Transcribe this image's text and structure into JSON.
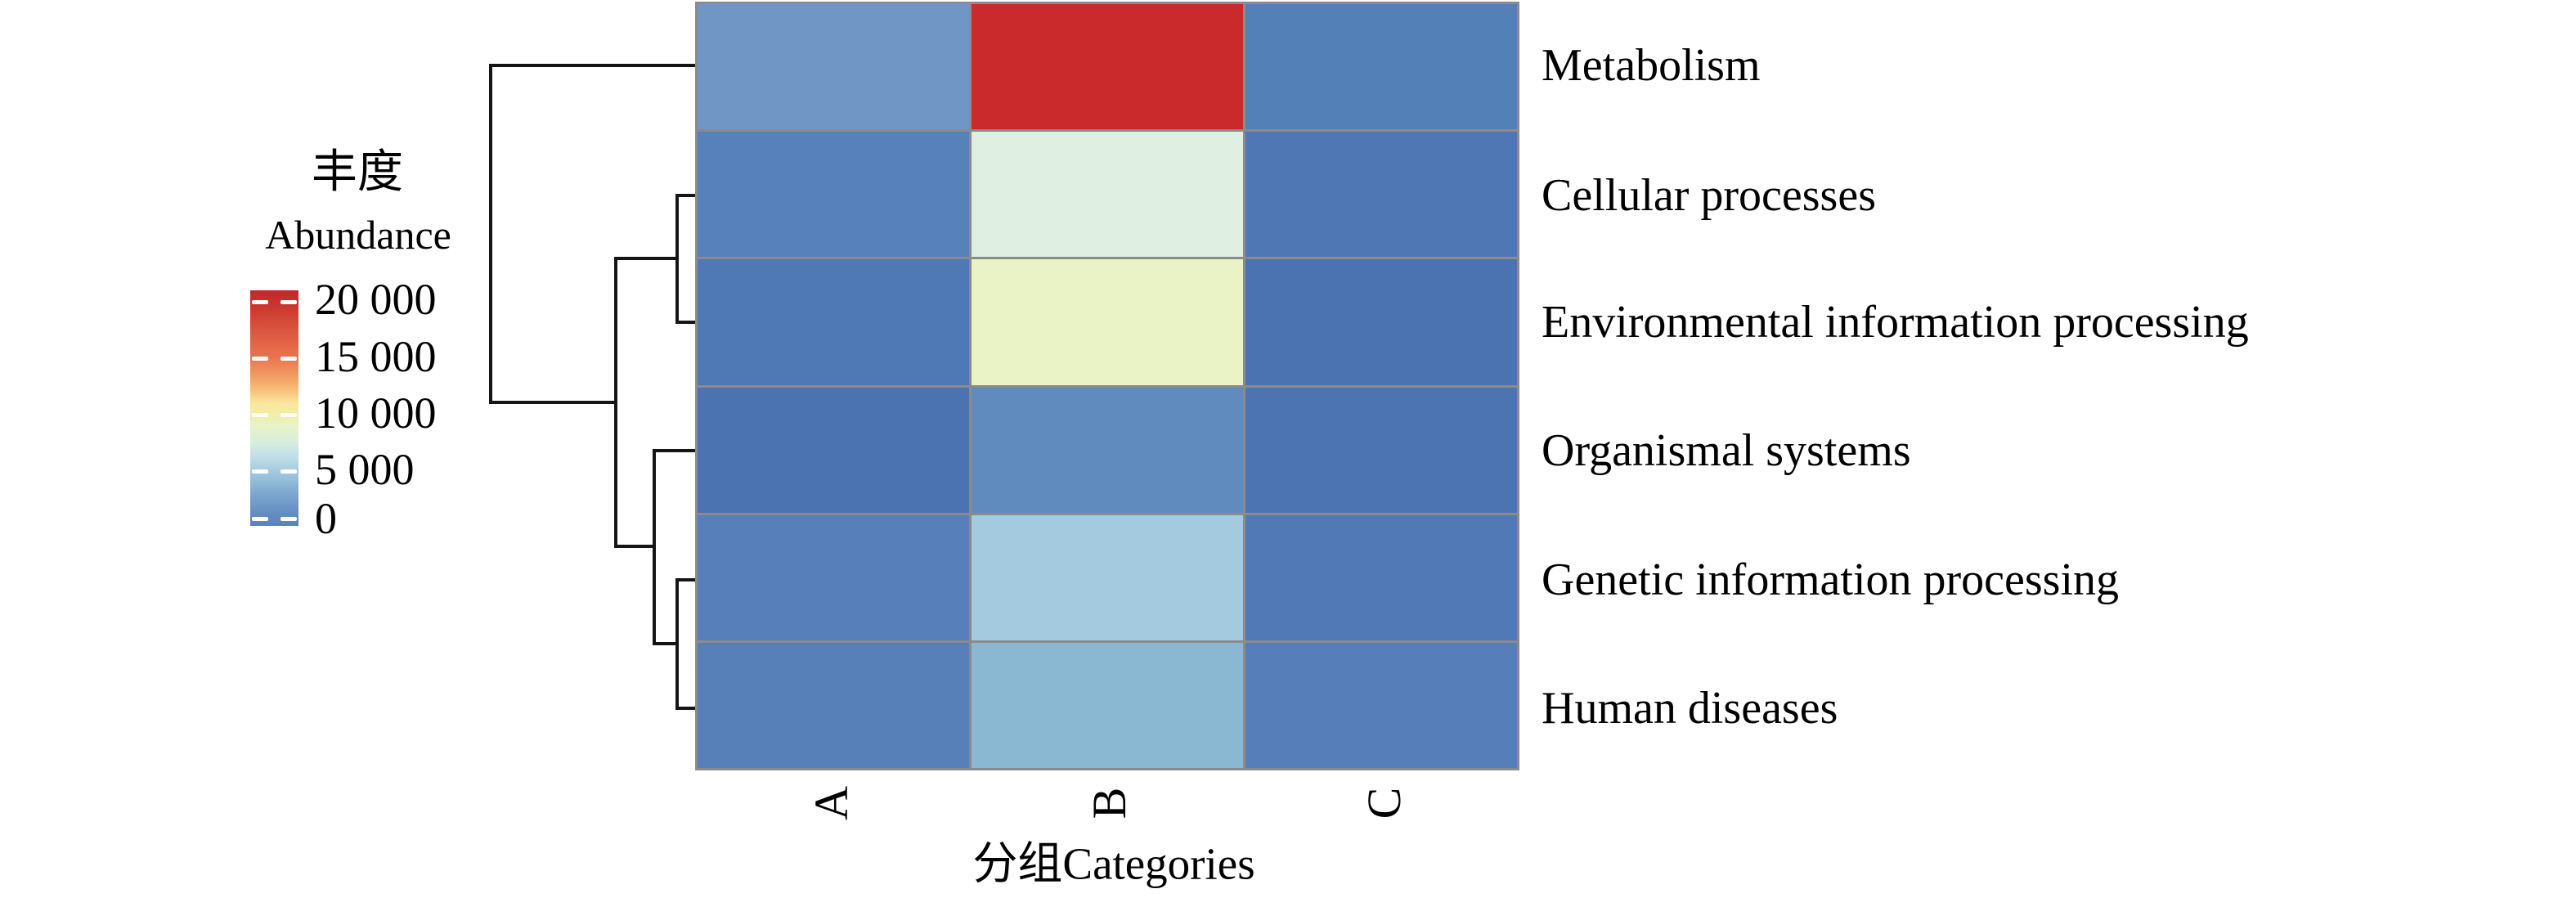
{
  "chart_data": {
    "type": "heatmap",
    "colormap": "RdYlBu",
    "xlabel": "分组Categories",
    "x_categories": [
      "A",
      "B",
      "C"
    ],
    "y_categories": [
      "Metabolism",
      "Cellular processes",
      "Environmental information processing",
      "Organismal systems",
      "Genetic information processing",
      "Human diseases"
    ],
    "legend": {
      "title_zh": "丰度",
      "title_en": "Abundance",
      "tick_labels": [
        "20 000",
        "15 000",
        "10 000",
        "5 000",
        "0"
      ],
      "tick_values": [
        20000,
        15000,
        10000,
        5000,
        0
      ],
      "range": [
        0,
        20000
      ],
      "gradient_stops": [
        {
          "pos": 0.0,
          "color": "#c2262b"
        },
        {
          "pos": 0.08,
          "color": "#cc3a2e"
        },
        {
          "pos": 0.18,
          "color": "#dc5742"
        },
        {
          "pos": 0.28,
          "color": "#e8724d"
        },
        {
          "pos": 0.36,
          "color": "#f29a62"
        },
        {
          "pos": 0.43,
          "color": "#f8c47e"
        },
        {
          "pos": 0.48,
          "color": "#fae79f"
        },
        {
          "pos": 0.52,
          "color": "#f3eda4"
        },
        {
          "pos": 0.58,
          "color": "#e8f2c8"
        },
        {
          "pos": 0.64,
          "color": "#daeeda"
        },
        {
          "pos": 0.7,
          "color": "#c3e0e8"
        },
        {
          "pos": 0.78,
          "color": "#a0c6dd"
        },
        {
          "pos": 0.86,
          "color": "#7fa8d0"
        },
        {
          "pos": 0.94,
          "color": "#6590c2"
        },
        {
          "pos": 1.0,
          "color": "#5a82ba"
        }
      ]
    },
    "rows": [
      {
        "label": "Metabolism",
        "values": [
          3000,
          19500,
          900
        ],
        "colors": [
          "#6f96c5",
          "#cb2a2d",
          "#5480b8"
        ]
      },
      {
        "label": "Cellular processes",
        "values": [
          900,
          6000,
          500
        ],
        "colors": [
          "#5781ba",
          "#dff0e3",
          "#4f77b4"
        ]
      },
      {
        "label": "Environmental information processing",
        "values": [
          500,
          8200,
          200
        ],
        "colors": [
          "#4f79b5",
          "#eaf3c6",
          "#4b72b1"
        ]
      },
      {
        "label": "Organismal systems",
        "values": [
          150,
          1800,
          400
        ],
        "colors": [
          "#4b73b2",
          "#608bbe",
          "#4d74b2"
        ]
      },
      {
        "label": "Genetic information processing",
        "values": [
          800,
          5200,
          500
        ],
        "colors": [
          "#577fb9",
          "#a3cade",
          "#5079b5"
        ]
      },
      {
        "label": "Human diseases",
        "values": [
          900,
          4300,
          800
        ],
        "colors": [
          "#5780b9",
          "#8ab7d2",
          "#567eb8"
        ]
      }
    ],
    "grid_line_color": "#8b8b8b",
    "dendrogram_topology": "(Metabolism,((Cellular processes,Environmental information processing),(Organismal systems,(Genetic information processing,Human diseases))))"
  },
  "dendrogram": {
    "stroke_color": "#151515",
    "stroke_width": 4,
    "segments": [
      [
        600,
        80,
        850,
        80
      ],
      [
        600,
        80,
        600,
        492
      ],
      [
        600,
        492,
        753,
        492
      ],
      [
        753,
        316,
        753,
        668
      ],
      [
        753,
        316,
        828,
        316
      ],
      [
        828,
        239,
        828,
        394
      ],
      [
        828,
        239,
        850,
        239
      ],
      [
        828,
        394,
        850,
        394
      ],
      [
        753,
        668,
        800,
        668
      ],
      [
        800,
        551,
        800,
        787
      ],
      [
        800,
        551,
        850,
        551
      ],
      [
        800,
        787,
        828,
        787
      ],
      [
        828,
        709,
        828,
        866
      ],
      [
        828,
        709,
        850,
        709
      ],
      [
        828,
        866,
        850,
        866
      ]
    ]
  },
  "layout_data": {
    "row_label_centers_y": [
      80,
      239,
      394,
      551,
      709,
      866
    ],
    "col_label_centers": [
      [
        1017,
        982
      ],
      [
        1357,
        982
      ],
      [
        1693,
        982
      ]
    ],
    "colorbar_tick_rel_y": [
      12,
      81,
      150,
      219,
      277
    ],
    "colorbar_label_centers_y": [
      366,
      436,
      505,
      574,
      634
    ]
  }
}
